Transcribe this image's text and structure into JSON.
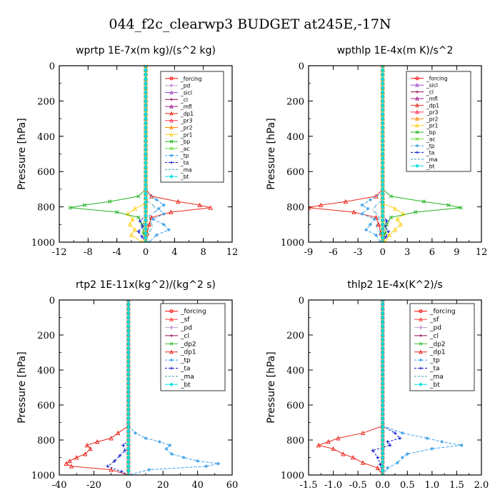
{
  "figure_title": "044_f2c_clearwp3  BUDGET at245E,-17N",
  "colors": {
    "_forcing": "#ff0000",
    "_pd": "#c8a2d8",
    "_sicl": "#9b4fc9",
    "_cl": "#8b0a50",
    "_mfl": "#a0188c",
    "_dp1": "#e8281e",
    "_pr3": "#ff2d55",
    "_pr2": "#ff8c00",
    "_pr1": "#ffd21e",
    "_bp": "#22b322",
    "_ac": "#66dd33",
    "_tp": "#3aa0e8",
    "_ta": "#0a1ac8",
    "_ma": "#3a9bc2",
    "_bt": "#00e0e0",
    "_sf": "#ff3c3c",
    "_dp2": "#33bb33"
  },
  "chart_data": [
    {
      "type": "line",
      "title": "wprtp  1E-7x(m kg)/(s^2 kg)",
      "ylabel": "Pressure [hPa]",
      "xlim": [
        -12,
        12
      ],
      "ylim": [
        1000,
        0
      ],
      "xticks": [
        "-12",
        "-8",
        "-4",
        "0",
        "4",
        "8",
        "12"
      ],
      "yticks": [
        "0",
        "200",
        "400",
        "600",
        "800",
        "1000"
      ],
      "legend_position": "top-right",
      "series": [
        {
          "name": "_forcing",
          "p": [
            0,
            1000
          ],
          "values": [
            0,
            0
          ]
        },
        {
          "name": "_pd",
          "p": [
            0,
            1000
          ],
          "values": [
            0,
            0
          ]
        },
        {
          "name": "_sicl",
          "p": [
            0,
            1000
          ],
          "values": [
            0,
            0
          ]
        },
        {
          "name": "_cl",
          "p": [
            0,
            1000
          ],
          "values": [
            0,
            0
          ]
        },
        {
          "name": "_mfl",
          "p": [
            0,
            1000
          ],
          "values": [
            0,
            0
          ]
        },
        {
          "name": "_dp1",
          "p": [
            700,
            740,
            770,
            790,
            805,
            830,
            860,
            900,
            950,
            1000
          ],
          "values": [
            0,
            0.8,
            4.5,
            7.5,
            9.0,
            3.5,
            0.8,
            0.5,
            0.2,
            0
          ]
        },
        {
          "name": "_pr3",
          "p": [
            0,
            1000
          ],
          "values": [
            0,
            0
          ]
        },
        {
          "name": "_pr2",
          "p": [
            0,
            1000
          ],
          "values": [
            0,
            0
          ]
        },
        {
          "name": "_pr1",
          "p": [
            780,
            810,
            840,
            870,
            900,
            930,
            960,
            1000
          ],
          "values": [
            0,
            -1.5,
            -2.5,
            -1.8,
            -2.2,
            -1.5,
            -2.0,
            -0.5
          ]
        },
        {
          "name": "_bp",
          "p": [
            700,
            740,
            770,
            790,
            805,
            830,
            860,
            900,
            950,
            1000
          ],
          "values": [
            0,
            -1.0,
            -5.0,
            -8.5,
            -10.5,
            -4.0,
            -1.0,
            -0.5,
            -0.3,
            0
          ]
        },
        {
          "name": "_ac",
          "p": [
            0,
            1000
          ],
          "values": [
            0,
            0
          ]
        },
        {
          "name": "_tp",
          "p": [
            720,
            760,
            790,
            810,
            840,
            870,
            900,
            930,
            960,
            1000
          ],
          "values": [
            0,
            1.5,
            2.5,
            1.8,
            2.5,
            1.0,
            2.5,
            3.2,
            1.5,
            0.5
          ]
        },
        {
          "name": "_ta",
          "p": [
            850,
            880,
            910,
            940,
            970,
            1000
          ],
          "values": [
            0,
            -0.8,
            -0.4,
            -1.0,
            -0.5,
            0
          ]
        },
        {
          "name": "_ma",
          "p": [
            760,
            790,
            820,
            850,
            880,
            910,
            940,
            970
          ],
          "values": [
            0,
            1.0,
            1.6,
            0.5,
            0.6,
            1.0,
            0.5,
            0.2
          ]
        },
        {
          "name": "_bt",
          "p": [
            0,
            1000
          ],
          "values": [
            0,
            0
          ]
        }
      ]
    },
    {
      "type": "line",
      "title": "wpthlp  1E-4x(m K)/s^2",
      "ylabel": "Pressure [hPa]",
      "xlim": [
        -9,
        12
      ],
      "ylim": [
        1000,
        0
      ],
      "xticks": [
        "-9",
        "-6",
        "-3",
        "0",
        "3",
        "6",
        "9",
        "12"
      ],
      "yticks": [
        "0",
        "200",
        "400",
        "600",
        "800",
        "1000"
      ],
      "legend_position": "top-right",
      "series": [
        {
          "name": "_forcing",
          "p": [
            0,
            1000
          ],
          "values": [
            0,
            0
          ]
        },
        {
          "name": "_sicl",
          "p": [
            0,
            1000
          ],
          "values": [
            0,
            0
          ]
        },
        {
          "name": "_cl",
          "p": [
            0,
            1000
          ],
          "values": [
            0,
            0
          ]
        },
        {
          "name": "_mfl",
          "p": [
            0,
            1000
          ],
          "values": [
            0,
            0
          ]
        },
        {
          "name": "_dp1",
          "p": [
            700,
            740,
            770,
            790,
            805,
            830,
            860,
            900,
            950,
            1000
          ],
          "values": [
            0,
            -0.8,
            -4.5,
            -7.5,
            -9.0,
            -3.5,
            -0.8,
            -0.5,
            -0.2,
            0
          ]
        },
        {
          "name": "_pr3",
          "p": [
            0,
            1000
          ],
          "values": [
            0,
            0
          ]
        },
        {
          "name": "_pr2",
          "p": [
            0,
            1000
          ],
          "values": [
            0,
            0
          ]
        },
        {
          "name": "_pr1",
          "p": [
            780,
            810,
            840,
            870,
            900,
            930,
            960,
            1000
          ],
          "values": [
            0,
            1.5,
            2.5,
            1.8,
            2.2,
            1.5,
            0.8,
            0.3
          ]
        },
        {
          "name": "_bp",
          "p": [
            700,
            740,
            770,
            790,
            805,
            830,
            860,
            900,
            950,
            1000
          ],
          "values": [
            0,
            1.0,
            5.0,
            8.0,
            9.5,
            4.0,
            1.0,
            0.5,
            0.3,
            0
          ]
        },
        {
          "name": "_ac",
          "p": [
            0,
            1000
          ],
          "values": [
            0,
            0
          ]
        },
        {
          "name": "_tp",
          "p": [
            720,
            760,
            790,
            810,
            840,
            870,
            900,
            930,
            960,
            1000
          ],
          "values": [
            0,
            -1.5,
            -2.5,
            -1.8,
            -2.5,
            -1.0,
            -1.5,
            -2.0,
            -0.8,
            -0.3
          ]
        },
        {
          "name": "_ta",
          "p": [
            850,
            880,
            910,
            940,
            970,
            1000
          ],
          "values": [
            0,
            0.5,
            0.3,
            0.7,
            0.4,
            0
          ]
        },
        {
          "name": "_ma",
          "p": [
            760,
            790,
            820,
            850,
            880,
            910,
            940,
            970
          ],
          "values": [
            0,
            -0.8,
            -1.2,
            -0.4,
            -0.5,
            -0.8,
            -0.4,
            -0.1
          ]
        },
        {
          "name": "_bt",
          "p": [
            0,
            1000
          ],
          "values": [
            0,
            0
          ]
        }
      ]
    },
    {
      "type": "line",
      "title": "rtp2  1E-11x(kg^2)/(kg^2 s)",
      "ylabel": "Pressure [hPa]",
      "xlim": [
        -40,
        60
      ],
      "ylim": [
        1000,
        0
      ],
      "xticks": [
        "-40",
        "-20",
        "0",
        "20",
        "40",
        "60"
      ],
      "yticks": [
        "0",
        "200",
        "400",
        "600",
        "800",
        "1000"
      ],
      "legend_position": "top-right",
      "series": [
        {
          "name": "_forcing",
          "p": [
            0,
            1000
          ],
          "values": [
            0,
            0
          ]
        },
        {
          "name": "_sf",
          "p": [
            0,
            1000
          ],
          "values": [
            0,
            0
          ]
        },
        {
          "name": "_pd",
          "p": [
            0,
            1000
          ],
          "values": [
            0,
            0
          ]
        },
        {
          "name": "_cl",
          "p": [
            0,
            1000
          ],
          "values": [
            0,
            0
          ]
        },
        {
          "name": "_dp2",
          "p": [
            0,
            1000
          ],
          "values": [
            0,
            0
          ]
        },
        {
          "name": "_dp1",
          "p": [
            720,
            760,
            790,
            810,
            830,
            850,
            880,
            900,
            920,
            935,
            950,
            970,
            1000
          ],
          "values": [
            0,
            -6,
            -10,
            -18,
            -24,
            -22,
            -25,
            -30,
            -34,
            -36,
            -33,
            -10,
            0
          ]
        },
        {
          "name": "_tp",
          "p": [
            720,
            760,
            790,
            810,
            830,
            850,
            880,
            900,
            920,
            935,
            950,
            970,
            1000
          ],
          "values": [
            0,
            4,
            10,
            18,
            24,
            22,
            25,
            32,
            40,
            52,
            45,
            12,
            0
          ]
        },
        {
          "name": "_ta",
          "p": [
            800,
            830,
            860,
            890,
            920,
            950,
            980,
            1000
          ],
          "values": [
            0,
            -3,
            -2,
            -5,
            -8,
            -12,
            -4,
            0
          ]
        },
        {
          "name": "_ma",
          "p": [
            0,
            1000
          ],
          "values": [
            0,
            0
          ]
        },
        {
          "name": "_bt",
          "p": [
            0,
            1000
          ],
          "values": [
            0,
            0
          ]
        }
      ]
    },
    {
      "type": "line",
      "title": "thlp2  1E-4x(K^2)/s",
      "ylabel": "Pressure [hPa]",
      "xlim": [
        -1.5,
        2.0
      ],
      "ylim": [
        1000,
        0
      ],
      "xticks": [
        "-1.5",
        "-1.0",
        "-0.5",
        "0.0",
        "0.5",
        "1.0",
        "1.5",
        "2.0"
      ],
      "yticks": [
        "0",
        "200",
        "400",
        "600",
        "800",
        "1000"
      ],
      "legend_position": "top-right",
      "series": [
        {
          "name": "_forcing",
          "p": [
            0,
            1000
          ],
          "values": [
            0,
            0
          ]
        },
        {
          "name": "_sf",
          "p": [
            0,
            1000
          ],
          "values": [
            0,
            0
          ]
        },
        {
          "name": "_pd",
          "p": [
            0,
            1000
          ],
          "values": [
            0,
            0
          ]
        },
        {
          "name": "_cl",
          "p": [
            0,
            1000
          ],
          "values": [
            0,
            0
          ]
        },
        {
          "name": "_dp2",
          "p": [
            0,
            1000
          ],
          "values": [
            0,
            0
          ]
        },
        {
          "name": "_dp1",
          "p": [
            720,
            760,
            790,
            810,
            830,
            850,
            880,
            900,
            930,
            960,
            1000
          ],
          "values": [
            0,
            -0.4,
            -0.9,
            -1.1,
            -1.3,
            -1.0,
            -0.8,
            -0.6,
            -0.4,
            -0.1,
            0
          ]
        },
        {
          "name": "_tp",
          "p": [
            720,
            760,
            790,
            810,
            830,
            850,
            880,
            900,
            930,
            960,
            1000
          ],
          "values": [
            0,
            0.4,
            0.9,
            1.2,
            1.6,
            1.0,
            0.5,
            0.4,
            0.3,
            0.1,
            0
          ]
        },
        {
          "name": "_ta",
          "p": [
            720,
            760,
            790,
            810,
            830,
            860,
            900,
            940,
            1000
          ],
          "values": [
            0,
            0.25,
            0.35,
            0.1,
            0.15,
            -0.2,
            -0.1,
            -0.05,
            0
          ]
        },
        {
          "name": "_ma",
          "p": [
            0,
            1000
          ],
          "values": [
            0,
            0
          ]
        },
        {
          "name": "_bt",
          "p": [
            0,
            1000
          ],
          "values": [
            0,
            0
          ]
        }
      ]
    }
  ]
}
